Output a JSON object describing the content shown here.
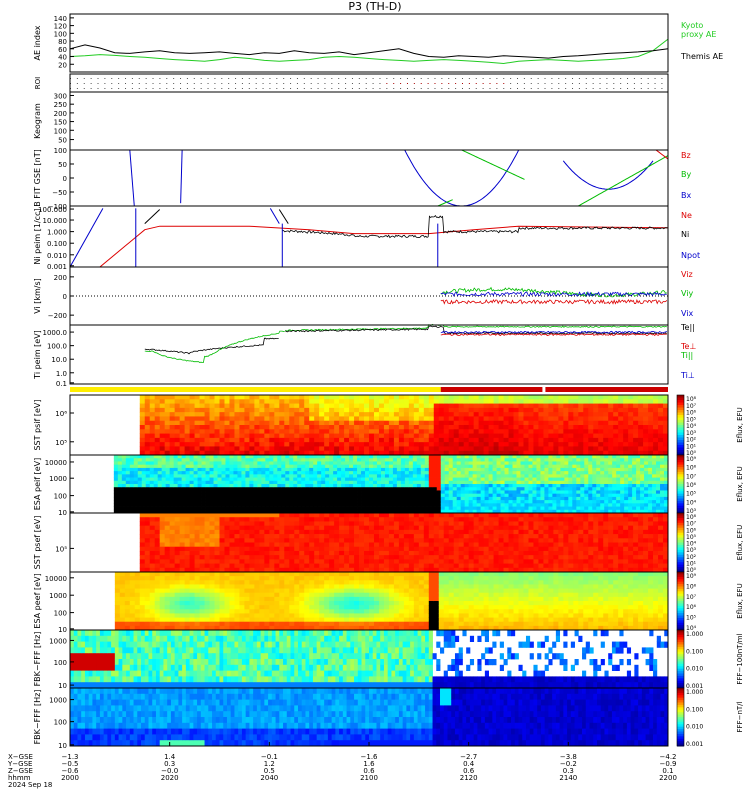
{
  "title": "P3 (TH-D)",
  "colors": {
    "kyoto": "#22cc22",
    "themis": "#000000",
    "red": "#dd0000",
    "green": "#00bb00",
    "blue": "#0000cc",
    "black": "#000000"
  },
  "chart_data": [
    {
      "type": "line",
      "id": "ae",
      "ylabel": "AE index",
      "yticks": [
        "140",
        "120",
        "100",
        "80",
        "60",
        "40",
        "20"
      ],
      "ylim": [
        0,
        150
      ],
      "x": [
        2000,
        2005,
        2010,
        2015,
        2020,
        2025,
        2030,
        2035,
        2040,
        2045,
        2050,
        2055,
        2060,
        2065,
        2070,
        2075,
        2080,
        2085,
        2090,
        2095,
        2100,
        2105,
        2110,
        2115,
        2120,
        2125,
        2130,
        2135,
        2140,
        2145,
        2150,
        2155,
        2160,
        2165,
        2170,
        2175,
        2180,
        2185,
        2190,
        2195,
        2200
      ],
      "series": [
        {
          "name": "Kyoto proxy AE",
          "color": "#22cc22",
          "values": [
            40,
            42,
            45,
            43,
            40,
            38,
            35,
            32,
            30,
            28,
            32,
            38,
            35,
            30,
            28,
            30,
            32,
            38,
            40,
            38,
            35,
            32,
            30,
            28,
            30,
            32,
            30,
            28,
            25,
            22,
            28,
            30,
            32,
            30,
            28,
            30,
            32,
            35,
            40,
            55,
            85
          ]
        },
        {
          "name": "Themis AE",
          "color": "#000000",
          "values": [
            60,
            70,
            62,
            50,
            48,
            52,
            55,
            50,
            48,
            50,
            52,
            48,
            45,
            50,
            48,
            55,
            50,
            48,
            52,
            45,
            50,
            55,
            60,
            48,
            40,
            38,
            42,
            40,
            38,
            42,
            40,
            38,
            36,
            40,
            42,
            45,
            48,
            50,
            52,
            55,
            60
          ]
        }
      ],
      "legend": [
        "Kyoto",
        "proxy AE",
        "Themis AE"
      ]
    },
    {
      "type": "heatmap",
      "id": "roi",
      "ylabel": "ROI"
    },
    {
      "type": "line",
      "id": "keogram",
      "ylabel": "Keogram",
      "yticks": [
        "300",
        "250",
        "200",
        "150",
        "100",
        "50"
      ],
      "ylim": [
        0,
        320
      ]
    },
    {
      "type": "line",
      "id": "bfgm",
      "ylabel": "B FIT GSE [nT]",
      "yticks": [
        "100",
        "50",
        "0",
        "−50",
        "−100"
      ],
      "ylim": [
        -100,
        100
      ],
      "legend": [
        "Bz",
        "By",
        "Bx"
      ]
    },
    {
      "type": "line",
      "id": "density",
      "ylabel": "Ni peim [1/cc]",
      "yticks": [
        "100.000",
        "10.000",
        "1.000",
        "0.100",
        "0.010",
        "0.001"
      ],
      "scale": "log",
      "legend": [
        "Ne",
        "Ni",
        "Npot"
      ]
    },
    {
      "type": "line",
      "id": "velocity",
      "ylabel": "Vi [km/s]",
      "yticks": [
        "200",
        "0",
        "−200"
      ],
      "ylim": [
        -300,
        300
      ],
      "legend": [
        "Viz",
        "Viy",
        "Vix"
      ]
    },
    {
      "type": "line",
      "id": "temperature",
      "ylabel": "Ti peim [eV]",
      "yticks": [
        "1000.0",
        "100.0",
        "10.0",
        "1.0",
        "0.1"
      ],
      "scale": "log",
      "legend": [
        "Te||",
        "Te⊥",
        "Ti||",
        "Ti⊥"
      ]
    },
    {
      "type": "heatmap",
      "id": "sst_i",
      "ylabel": "SST psif [eV]",
      "yticks": [
        "10⁶",
        "10⁵"
      ],
      "cbar_label": "Eflux, EFU",
      "cbar_ticks": [
        "10⁸",
        "10⁷",
        "10⁶",
        "10⁵",
        "10⁴",
        "10³",
        "10²",
        "10¹",
        "10⁰"
      ]
    },
    {
      "type": "heatmap",
      "id": "esa_i",
      "ylabel": "ESA peif [eV]",
      "yticks": [
        "10000",
        "1000",
        "100",
        "10"
      ],
      "cbar_label": "Eflux, EFU",
      "cbar_ticks": [
        "10⁹",
        "10⁸",
        "10⁷",
        "10⁶",
        "10⁵",
        "10⁴",
        "10³"
      ]
    },
    {
      "type": "heatmap",
      "id": "sst_e",
      "ylabel": "SST psef [eV]",
      "yticks": [
        "10⁵"
      ],
      "cbar_label": "Eflux, EFU",
      "cbar_ticks": [
        "10⁸",
        "10⁷",
        "10⁶",
        "10⁵",
        "10⁴",
        "10³",
        "10²",
        "10¹",
        "10⁰"
      ]
    },
    {
      "type": "heatmap",
      "id": "esa_e",
      "ylabel": "ESA peef [eV]",
      "yticks": [
        "10000",
        "1000",
        "100",
        "10"
      ],
      "cbar_label": "Eflux, EFU",
      "cbar_ticks": [
        "10⁹",
        "10⁸",
        "10⁷",
        "10⁶",
        "10⁵",
        "10⁴"
      ]
    },
    {
      "type": "heatmap",
      "id": "fbk_b",
      "ylabel": "FBK−FFF [Hz]",
      "yticks": [
        "1000",
        "100",
        "10"
      ],
      "cbar_label": "FFF−100nT/ml",
      "cbar_ticks": [
        "1.000",
        "0.100",
        "0.010",
        "0.001"
      ]
    },
    {
      "type": "heatmap",
      "id": "fbk_e",
      "ylabel": "FBK−FFF [Hz]",
      "yticks": [
        "1000",
        "100",
        "10"
      ],
      "cbar_label": "FFF−nT/l",
      "cbar_ticks": [
        "1.000",
        "0.100",
        "0.010",
        "0.001"
      ]
    }
  ],
  "xaxis": {
    "rows": [
      "X−GSE",
      "Y−GSE",
      "Z−GSE",
      "hhmm",
      "2024 Sep 18"
    ],
    "columns": [
      [
        "−1.3",
        "−0.5",
        "−0.6",
        "2000"
      ],
      [
        "1.4",
        "0.3",
        "−0.0",
        "2020"
      ],
      [
        "−0.1",
        "1.2",
        "0.5",
        "2040"
      ],
      [
        "−1.6",
        "1.6",
        "0.6",
        "2100"
      ],
      [
        "−2.7",
        "0.4",
        "0.6",
        "2120"
      ],
      [
        "−3.8",
        "−0.2",
        "0.3",
        "2140"
      ],
      [
        "−4.2",
        "−0.9",
        "0.1",
        "2200"
      ]
    ]
  }
}
